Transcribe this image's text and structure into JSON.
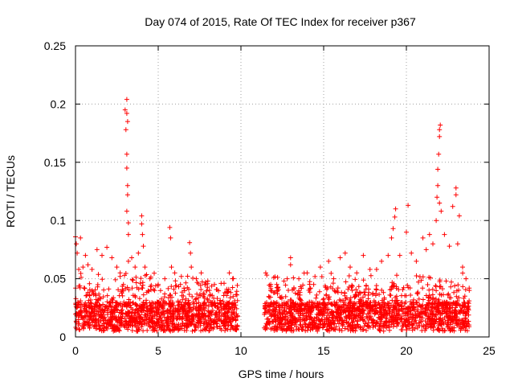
{
  "chart_data": {
    "type": "scatter",
    "title": "Day 074 of 2015, Rate Of TEC Index for receiver p367",
    "xlabel": "GPS time / hours",
    "ylabel": "ROTI / TECUs",
    "xlim": [
      0,
      25
    ],
    "ylim": [
      0,
      0.25
    ],
    "xticks": [
      0,
      5,
      10,
      15,
      20,
      25
    ],
    "yticks": [
      0,
      0.05,
      0.1,
      0.15,
      0.2,
      0.25
    ],
    "xtick_labels": [
      "0",
      "5",
      "10",
      "15",
      "20",
      "25"
    ],
    "ytick_labels": [
      "0",
      "0.05",
      "0.1",
      "0.15",
      "0.2",
      "0.25"
    ],
    "grid": true,
    "marker": "+",
    "series": [
      {
        "name": "ROTI",
        "color": "#ff0000",
        "segments": [
          {
            "x_start": 0.0,
            "x_end": 9.8
          },
          {
            "x_start": 11.4,
            "x_end": 23.8
          }
        ],
        "points": [
          [
            0.0,
            0.086
          ],
          [
            0.05,
            0.08
          ],
          [
            0.1,
            0.072
          ],
          [
            0.2,
            0.058
          ],
          [
            0.3,
            0.085
          ],
          [
            0.45,
            0.06
          ],
          [
            0.6,
            0.07
          ],
          [
            0.75,
            0.062
          ],
          [
            1.0,
            0.058
          ],
          [
            1.3,
            0.075
          ],
          [
            1.6,
            0.07
          ],
          [
            1.9,
            0.077
          ],
          [
            2.2,
            0.068
          ],
          [
            2.5,
            0.06
          ],
          [
            2.7,
            0.055
          ],
          [
            2.9,
            0.045
          ],
          [
            3.0,
            0.195
          ],
          [
            3.05,
            0.178
          ],
          [
            3.1,
            0.204
          ],
          [
            3.1,
            0.192
          ],
          [
            3.15,
            0.185
          ],
          [
            3.1,
            0.157
          ],
          [
            3.1,
            0.145
          ],
          [
            3.15,
            0.13
          ],
          [
            3.15,
            0.122
          ],
          [
            3.1,
            0.108
          ],
          [
            3.2,
            0.098
          ],
          [
            3.2,
            0.088
          ],
          [
            3.2,
            0.065
          ],
          [
            3.4,
            0.068
          ],
          [
            3.6,
            0.06
          ],
          [
            3.8,
            0.072
          ],
          [
            4.0,
            0.104
          ],
          [
            4.0,
            0.097
          ],
          [
            4.05,
            0.088
          ],
          [
            4.1,
            0.078
          ],
          [
            4.2,
            0.06
          ],
          [
            4.5,
            0.05
          ],
          [
            5.0,
            0.045
          ],
          [
            5.4,
            0.05
          ],
          [
            5.7,
            0.094
          ],
          [
            5.75,
            0.085
          ],
          [
            5.8,
            0.06
          ],
          [
            6.0,
            0.055
          ],
          [
            6.4,
            0.052
          ],
          [
            6.9,
            0.081
          ],
          [
            6.95,
            0.072
          ],
          [
            7.0,
            0.06
          ],
          [
            7.3,
            0.05
          ],
          [
            7.6,
            0.055
          ],
          [
            8.0,
            0.048
          ],
          [
            8.4,
            0.045
          ],
          [
            8.8,
            0.046
          ],
          [
            9.3,
            0.055
          ],
          [
            9.5,
            0.05
          ],
          [
            11.5,
            0.055
          ],
          [
            11.8,
            0.045
          ],
          [
            12.2,
            0.04
          ],
          [
            12.6,
            0.048
          ],
          [
            13.0,
            0.068
          ],
          [
            13.0,
            0.062
          ],
          [
            13.5,
            0.05
          ],
          [
            14.0,
            0.055
          ],
          [
            14.4,
            0.045
          ],
          [
            14.8,
            0.06
          ],
          [
            15.3,
            0.065
          ],
          [
            15.6,
            0.05
          ],
          [
            16.0,
            0.068
          ],
          [
            16.3,
            0.072
          ],
          [
            16.6,
            0.06
          ],
          [
            17.0,
            0.055
          ],
          [
            17.4,
            0.07
          ],
          [
            17.8,
            0.058
          ],
          [
            18.2,
            0.058
          ],
          [
            18.5,
            0.065
          ],
          [
            18.9,
            0.07
          ],
          [
            19.1,
            0.085
          ],
          [
            19.2,
            0.093
          ],
          [
            19.3,
            0.103
          ],
          [
            19.35,
            0.11
          ],
          [
            19.6,
            0.07
          ],
          [
            20.0,
            0.09
          ],
          [
            20.1,
            0.113
          ],
          [
            20.3,
            0.072
          ],
          [
            20.6,
            0.065
          ],
          [
            21.0,
            0.085
          ],
          [
            21.2,
            0.075
          ],
          [
            21.4,
            0.088
          ],
          [
            21.6,
            0.08
          ],
          [
            21.8,
            0.1
          ],
          [
            21.85,
            0.12
          ],
          [
            21.9,
            0.13
          ],
          [
            21.9,
            0.144
          ],
          [
            21.95,
            0.157
          ],
          [
            22.0,
            0.172
          ],
          [
            22.0,
            0.178
          ],
          [
            22.05,
            0.182
          ],
          [
            22.0,
            0.115
          ],
          [
            22.1,
            0.108
          ],
          [
            22.3,
            0.088
          ],
          [
            22.6,
            0.078
          ],
          [
            22.8,
            0.112
          ],
          [
            23.0,
            0.128
          ],
          [
            23.0,
            0.122
          ],
          [
            23.1,
            0.08
          ],
          [
            23.2,
            0.104
          ],
          [
            23.4,
            0.06
          ],
          [
            23.6,
            0.05
          ],
          [
            23.8,
            0.04
          ]
        ]
      }
    ]
  }
}
